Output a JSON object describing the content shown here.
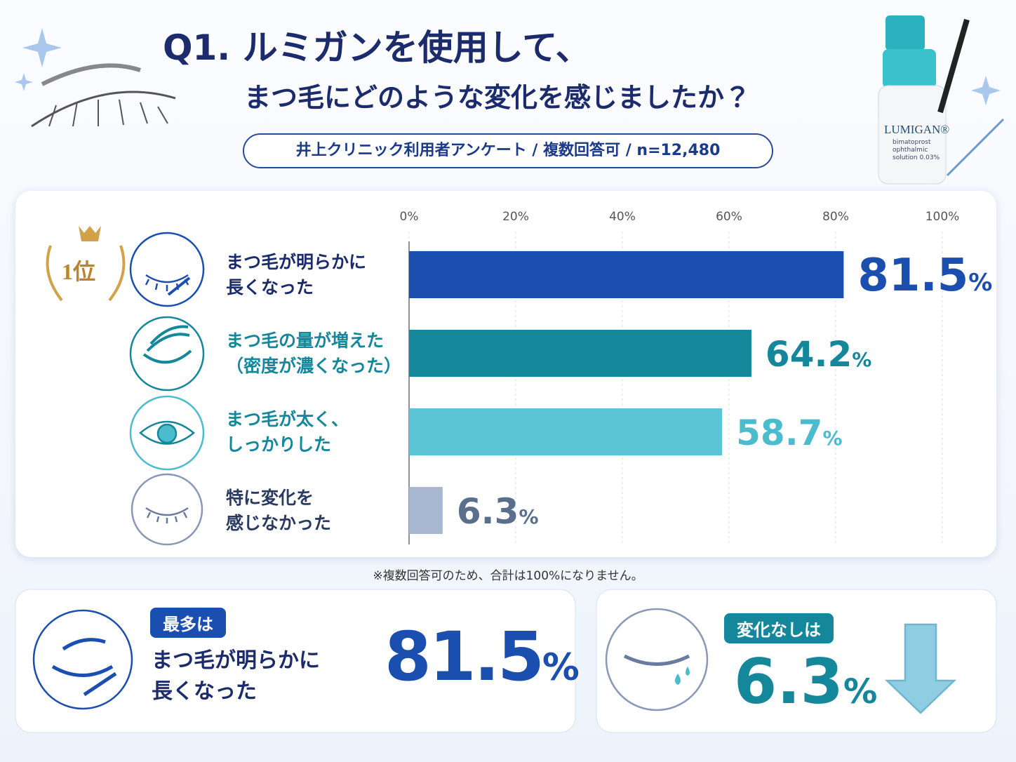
{
  "header": {
    "title_line1": "Q1. ルミガンを使用して、",
    "title_line2": "まつ毛にどのような変化を感じましたか？",
    "survey": "井上クリニック利用者アンケート / 複数回答可 / n=12,480"
  },
  "product": {
    "brand": "LUMIGAN®",
    "description": "bimatoprost\nophthalmic\nsolution 0.03%"
  },
  "chart_data": {
    "type": "bar",
    "orientation": "horizontal",
    "categories": [
      "まつ毛が明らかに\n長くなった",
      "まつ毛の量が増えた\n（密度が濃くなった）",
      "まつ毛が太く、\nしっかりした",
      "特に変化を\n感じなかった"
    ],
    "values": [
      81.5,
      64.2,
      58.7,
      6.3
    ],
    "value_labels": [
      "81.5%",
      "64.2%",
      "58.7%",
      "6.3%"
    ],
    "colors": [
      "#1a4fb0",
      "#15879a",
      "#5cc5d5",
      "#a7b8d0"
    ],
    "label_colors": [
      "#1a4fb0",
      "#15879a",
      "#4bbccd",
      "#5a6e8e"
    ],
    "xlim": [
      0,
      100
    ],
    "xticks": [
      {
        "value": 0,
        "label": "0%"
      },
      {
        "value": 20,
        "label": "20%"
      },
      {
        "value": 40,
        "label": "40%"
      },
      {
        "value": 60,
        "label": "60%"
      },
      {
        "value": 80,
        "label": "80%"
      },
      {
        "value": 100,
        "label": "100%"
      }
    ],
    "grid": true,
    "rank_badge": "1位",
    "note": "※複数回答可のため、合計は100%になりません。"
  },
  "summary": {
    "most": {
      "badge": "最多は",
      "label": "まつ毛が明らかに\n長くなった",
      "value": "81.5%"
    },
    "none": {
      "badge": "変化なしは",
      "value": "6.3%"
    }
  }
}
